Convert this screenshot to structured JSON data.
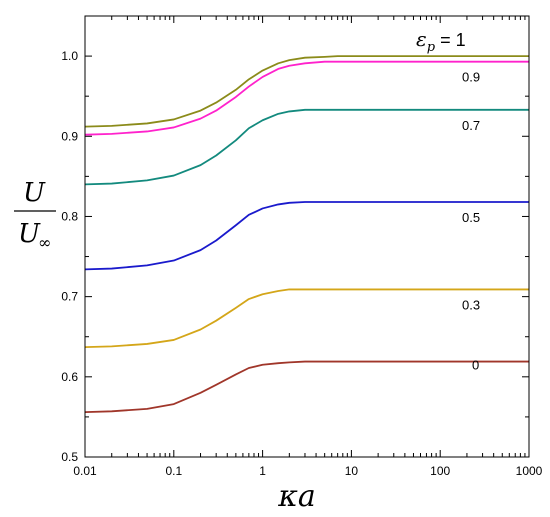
{
  "chart_data": {
    "type": "line",
    "title": "",
    "xlabel": "κa",
    "ylabel": {
      "numerator": "U",
      "denominator": "U",
      "denominator_subscript": "∞"
    },
    "x_scale": "log",
    "xlim": [
      0.01,
      1000
    ],
    "ylim": [
      0.5,
      1.05
    ],
    "x_ticks": [
      0.01,
      0.1,
      1,
      10,
      100,
      1000
    ],
    "x_tick_labels": [
      "0.01",
      "0.1",
      "1",
      "10",
      "100",
      "1000"
    ],
    "y_ticks": [
      0.5,
      0.6,
      0.7,
      0.8,
      0.9,
      1.0
    ],
    "y_tick_labels": [
      "0.5",
      "0.6",
      "0.7",
      "0.8",
      "0.9",
      "1.0"
    ],
    "grid": false,
    "legend": "none",
    "x": [
      0.01,
      0.02,
      0.05,
      0.1,
      0.2,
      0.3,
      0.5,
      0.7,
      1,
      1.5,
      2,
      3,
      5,
      7,
      10,
      20,
      50,
      100,
      200,
      500,
      1000
    ],
    "series": [
      {
        "label": "1",
        "label_prefix": "ε",
        "label_subscript": "p",
        "label_operator": " = ",
        "color": "#8b8b1a",
        "values": [
          0.912,
          0.913,
          0.916,
          0.921,
          0.932,
          0.942,
          0.958,
          0.971,
          0.982,
          0.991,
          0.995,
          0.998,
          0.999,
          1.0,
          1.0,
          1.0,
          1.0,
          1.0,
          1.0,
          1.0,
          1.0
        ]
      },
      {
        "label": "0.9",
        "color": "#ff22cc",
        "values": [
          0.902,
          0.903,
          0.906,
          0.911,
          0.922,
          0.932,
          0.949,
          0.962,
          0.974,
          0.984,
          0.988,
          0.991,
          0.993,
          0.993,
          0.993,
          0.993,
          0.993,
          0.993,
          0.993,
          0.993,
          0.993
        ]
      },
      {
        "label": "0.7",
        "color": "#138a7e",
        "values": [
          0.84,
          0.841,
          0.845,
          0.851,
          0.864,
          0.876,
          0.895,
          0.91,
          0.92,
          0.928,
          0.931,
          0.933,
          0.933,
          0.933,
          0.933,
          0.933,
          0.933,
          0.933,
          0.933,
          0.933,
          0.933
        ]
      },
      {
        "label": "0.5",
        "color": "#1a1acc",
        "values": [
          0.734,
          0.735,
          0.739,
          0.745,
          0.758,
          0.77,
          0.789,
          0.802,
          0.81,
          0.815,
          0.817,
          0.818,
          0.818,
          0.818,
          0.818,
          0.818,
          0.818,
          0.818,
          0.818,
          0.818,
          0.818
        ]
      },
      {
        "label": "0.3",
        "color": "#d4a619",
        "values": [
          0.637,
          0.638,
          0.641,
          0.646,
          0.659,
          0.67,
          0.686,
          0.697,
          0.703,
          0.707,
          0.709,
          0.709,
          0.709,
          0.709,
          0.709,
          0.709,
          0.709,
          0.709,
          0.709,
          0.709,
          0.709
        ]
      },
      {
        "label": "0",
        "color": "#a0362a",
        "values": [
          0.556,
          0.557,
          0.56,
          0.566,
          0.58,
          0.59,
          0.603,
          0.611,
          0.615,
          0.617,
          0.618,
          0.619,
          0.619,
          0.619,
          0.619,
          0.619,
          0.619,
          0.619,
          0.619,
          0.619,
          0.619
        ]
      }
    ]
  }
}
